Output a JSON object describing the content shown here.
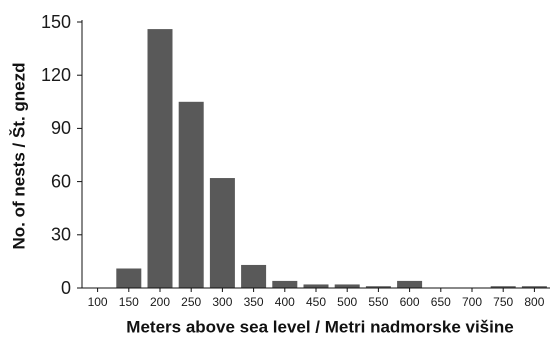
{
  "chart_data": {
    "type": "bar",
    "categories": [
      "100",
      "150",
      "200",
      "250",
      "300",
      "350",
      "400",
      "450",
      "500",
      "550",
      "600",
      "650",
      "700",
      "750",
      "800"
    ],
    "values": [
      0,
      11,
      146,
      105,
      62,
      13,
      4,
      2,
      2,
      1,
      4,
      0,
      0,
      1,
      1
    ],
    "ylim": [
      0,
      150
    ],
    "yticks": [
      "0",
      "30",
      "60",
      "90",
      "120",
      "150"
    ],
    "xlabel": "Meters above sea level / Metri nadmorske višine",
    "ylabel": "No. of nests / Št. gnezd",
    "grid": false,
    "legend": "none",
    "bar_color": "#595959"
  }
}
